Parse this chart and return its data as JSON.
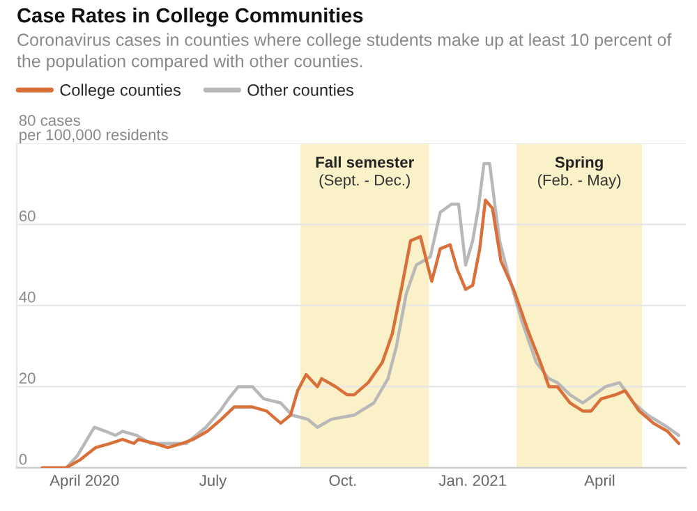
{
  "chart_data": {
    "type": "line",
    "title": "Case Rates in College Communities",
    "subtitle": "Coronavirus cases in counties where college students make up at least 10 percent of the population compared with other counties.",
    "series": [
      {
        "name": "College counties",
        "color": "#d9703a",
        "x": [
          "2020-03-02",
          "2020-03-19",
          "2020-03-29",
          "2020-04-09",
          "2020-04-19",
          "2020-04-28",
          "2020-05-06",
          "2020-05-09",
          "2020-05-21",
          "2020-05-30",
          "2020-06-09",
          "2020-06-17",
          "2020-06-27",
          "2020-07-07",
          "2020-07-16",
          "2020-07-29",
          "2020-08-08",
          "2020-08-18",
          "2020-08-25",
          "2020-08-30",
          "2020-09-05",
          "2020-09-13",
          "2020-09-16",
          "2020-09-26",
          "2020-10-04",
          "2020-10-09",
          "2020-10-19",
          "2020-10-29",
          "2020-11-05",
          "2020-11-12",
          "2020-11-18",
          "2020-11-25",
          "2020-11-30",
          "2020-12-03",
          "2020-12-09",
          "2020-12-16",
          "2020-12-21",
          "2020-12-27",
          "2021-01-01",
          "2021-01-06",
          "2021-01-10",
          "2021-01-15",
          "2021-01-21",
          "2021-01-30",
          "2021-02-09",
          "2021-02-19",
          "2021-02-24",
          "2021-03-02",
          "2021-03-11",
          "2021-03-20",
          "2021-03-26",
          "2021-04-02",
          "2021-04-12",
          "2021-04-19",
          "2021-04-29",
          "2021-05-09",
          "2021-05-19",
          "2021-05-27"
        ],
        "values": [
          0,
          0,
          2,
          5,
          6,
          7,
          6,
          7,
          6,
          5,
          6,
          7,
          9,
          12,
          15,
          15,
          14,
          11,
          13,
          19,
          23,
          20,
          22,
          20,
          18,
          18,
          21,
          26,
          33,
          45,
          56,
          57,
          50,
          46,
          54,
          55,
          49,
          44,
          45,
          54,
          66,
          64,
          51,
          44,
          34,
          25,
          20,
          20,
          16,
          14,
          14,
          17,
          18,
          19,
          14,
          11,
          9,
          6
        ]
      },
      {
        "name": "Other counties",
        "color": "#b8b8b8",
        "x": [
          "2020-03-02",
          "2020-03-19",
          "2020-03-27",
          "2020-04-08",
          "2020-04-16",
          "2020-04-23",
          "2020-04-28",
          "2020-05-08",
          "2020-05-18",
          "2020-05-30",
          "2020-06-12",
          "2020-06-26",
          "2020-07-06",
          "2020-07-12",
          "2020-07-19",
          "2020-07-29",
          "2020-08-06",
          "2020-08-18",
          "2020-08-26",
          "2020-09-06",
          "2020-09-13",
          "2020-09-23",
          "2020-10-09",
          "2020-10-23",
          "2020-11-02",
          "2020-11-08",
          "2020-11-15",
          "2020-11-22",
          "2020-12-02",
          "2020-12-09",
          "2020-12-17",
          "2020-12-22",
          "2020-12-27",
          "2021-01-01",
          "2021-01-05",
          "2021-01-09",
          "2021-01-13",
          "2021-01-20",
          "2021-01-26",
          "2021-02-05",
          "2021-02-15",
          "2021-02-24",
          "2021-03-02",
          "2021-03-11",
          "2021-03-20",
          "2021-03-28",
          "2021-04-05",
          "2021-04-15",
          "2021-04-25",
          "2021-05-05",
          "2021-05-19",
          "2021-05-27"
        ],
        "values": [
          0,
          0,
          3,
          10,
          9,
          8,
          9,
          8,
          6,
          6,
          6,
          10,
          14,
          17,
          20,
          20,
          17,
          16,
          13,
          12,
          10,
          12,
          13,
          16,
          22,
          30,
          43,
          50,
          52,
          63,
          65,
          65,
          50,
          56,
          64,
          75,
          75,
          56,
          48,
          36,
          26,
          22,
          21,
          18,
          16,
          18,
          20,
          21,
          16,
          13,
          10,
          8
        ]
      }
    ],
    "bands": [
      {
        "axis": "x",
        "from": "2020-09-01",
        "to": "2020-12-01",
        "label": "Fall semester\n(Sept. - Dec.)",
        "color": "#fbf1c8"
      },
      {
        "axis": "x",
        "from": "2021-02-01",
        "to": "2021-05-01",
        "label": "Spring\n(Feb. - May)",
        "color": "#fbf1c8"
      }
    ],
    "xlim": [
      "2020-02-13",
      "2021-06-01"
    ],
    "xticks": [
      {
        "value": "2020-04-01",
        "label": "April 2020"
      },
      {
        "value": "2020-07-01",
        "label": "July"
      },
      {
        "value": "2020-10-01",
        "label": "Oct."
      },
      {
        "value": "2021-01-01",
        "label": "Jan. 2021"
      },
      {
        "value": "2021-04-01",
        "label": "April"
      }
    ],
    "ylim": [
      0,
      80
    ],
    "yticks": [
      0,
      20,
      40,
      60,
      {
        "value": 80,
        "label": "80 cases\nper 100,000 residents"
      }
    ],
    "grid": "y",
    "legend": "top left",
    "line_style": "solid",
    "marker": "none"
  }
}
